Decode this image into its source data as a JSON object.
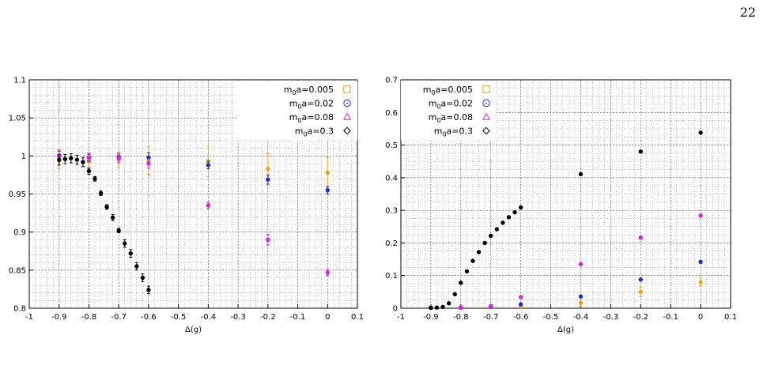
{
  "page_number": "22",
  "chart_data": [
    {
      "type": "scatter",
      "title": "",
      "xlabel": "Δ(g)",
      "ylabel": "",
      "xlim": [
        -1,
        0.1
      ],
      "ylim": [
        0.8,
        1.1
      ],
      "xticks": [
        -1,
        -0.9,
        -0.8,
        -0.7,
        -0.6,
        -0.5,
        -0.4,
        -0.3,
        -0.2,
        -0.1,
        0,
        0.1
      ],
      "xtick_labels": [
        "-1",
        "-0.9",
        "-0.8",
        "-0.7",
        "-0.6",
        "-0.5",
        "-0.4",
        "-0.3",
        "-0.2",
        "-0.1",
        "0",
        "0.1"
      ],
      "yticks": [
        0.8,
        0.85,
        0.9,
        0.95,
        1.0,
        1.05,
        1.1
      ],
      "ytick_labels": [
        "0.8",
        "0.85",
        "0.9",
        "0.95",
        "1",
        "1.05",
        "1.1"
      ],
      "grid": true,
      "legend_position": "top-right",
      "series": [
        {
          "name": "m0a=0.005",
          "legend_main": "m",
          "legend_sub": "0",
          "legend_rest": "a=0.005",
          "color": "#f0a020",
          "marker": "square",
          "points": [
            [
              -0.9,
              0.995,
              0.012
            ],
            [
              -0.8,
              0.993,
              0.01
            ],
            [
              -0.7,
              0.995,
              0.01
            ],
            [
              -0.6,
              0.994,
              0.018
            ],
            [
              -0.4,
              0.993,
              0.02
            ],
            [
              -0.2,
              0.983,
              0.02
            ],
            [
              0,
              0.978,
              0.02
            ]
          ]
        },
        {
          "name": "m0a=0.02",
          "legend_main": "m",
          "legend_sub": "0",
          "legend_rest": "a=0.02",
          "color": "#1a2fd0",
          "marker": "circle",
          "points": [
            [
              -0.9,
              1.0,
              0.006
            ],
            [
              -0.8,
              0.998,
              0.004
            ],
            [
              -0.7,
              0.999,
              0.004
            ],
            [
              -0.6,
              0.998,
              0.006
            ],
            [
              -0.4,
              0.988,
              0.005
            ],
            [
              -0.2,
              0.969,
              0.006
            ],
            [
              0,
              0.955,
              0.005
            ]
          ]
        },
        {
          "name": "m0a=0.08",
          "legend_main": "m",
          "legend_sub": "0",
          "legend_rest": "a=0.08",
          "color": "#e020e0",
          "marker": "triangle",
          "points": [
            [
              -0.9,
              1.0,
              0.008
            ],
            [
              -0.8,
              0.998,
              0.006
            ],
            [
              -0.7,
              0.997,
              0.006
            ],
            [
              -0.6,
              0.99,
              0.006
            ],
            [
              -0.4,
              0.935,
              0.004
            ],
            [
              -0.2,
              0.89,
              0.007
            ],
            [
              0,
              0.847,
              0.004
            ]
          ]
        },
        {
          "name": "m0a=0.3",
          "legend_main": "m",
          "legend_sub": "0",
          "legend_rest": "a=0.3",
          "color": "#000000",
          "marker": "diamond",
          "points": [
            [
              -0.9,
              0.995,
              0.007
            ],
            [
              -0.88,
              0.996,
              0.006
            ],
            [
              -0.86,
              0.997,
              0.006
            ],
            [
              -0.84,
              0.995,
              0.006
            ],
            [
              -0.82,
              0.992,
              0.006
            ],
            [
              -0.8,
              0.98,
              0.004
            ],
            [
              -0.78,
              0.97,
              0.003
            ],
            [
              -0.76,
              0.951,
              0.003
            ],
            [
              -0.74,
              0.933,
              0.003
            ],
            [
              -0.72,
              0.919,
              0.004
            ],
            [
              -0.7,
              0.902,
              0.003
            ],
            [
              -0.68,
              0.885,
              0.005
            ],
            [
              -0.66,
              0.872,
              0.005
            ],
            [
              -0.64,
              0.855,
              0.005
            ],
            [
              -0.62,
              0.84,
              0.005
            ],
            [
              -0.6,
              0.824,
              0.005
            ]
          ]
        }
      ]
    },
    {
      "type": "scatter",
      "title": "",
      "xlabel": "Δ(g)",
      "ylabel": "",
      "xlim": [
        -1,
        0.1
      ],
      "ylim": [
        0,
        0.7
      ],
      "xticks": [
        -1,
        -0.9,
        -0.8,
        -0.7,
        -0.6,
        -0.5,
        -0.4,
        -0.3,
        -0.2,
        -0.1,
        0,
        0.1
      ],
      "xtick_labels": [
        "-1",
        "-0.9",
        "-0.8",
        "-0.7",
        "-0.6",
        "-0.5",
        "-0.4",
        "-0.3",
        "-0.2",
        "-0.1",
        "0",
        "0.1"
      ],
      "yticks": [
        0,
        0.1,
        0.2,
        0.3,
        0.4,
        0.5,
        0.6,
        0.7
      ],
      "ytick_labels": [
        "0",
        "0.1",
        "0.2",
        "0.3",
        "0.4",
        "0.5",
        "0.6",
        "0.7"
      ],
      "grid": true,
      "legend_position": "top-left",
      "series": [
        {
          "name": "m0a=0.005",
          "legend_main": "m",
          "legend_sub": "0",
          "legend_rest": "a=0.005",
          "color": "#f0a020",
          "marker": "square",
          "points": [
            [
              -0.9,
              0.002,
              0.003
            ],
            [
              -0.8,
              0.002,
              0.003
            ],
            [
              -0.7,
              0.003,
              0.004
            ],
            [
              -0.6,
              0.006,
              0.005
            ],
            [
              -0.4,
              0.016,
              0.01
            ],
            [
              -0.2,
              0.05,
              0.015
            ],
            [
              0,
              0.08,
              0.012
            ]
          ]
        },
        {
          "name": "m0a=0.02",
          "legend_main": "m",
          "legend_sub": "0",
          "legend_rest": "a=0.02",
          "color": "#1a2fd0",
          "marker": "circle",
          "points": [
            [
              -0.9,
              0.002,
              0.002
            ],
            [
              -0.8,
              0.002,
              0.002
            ],
            [
              -0.7,
              0.005,
              0.002
            ],
            [
              -0.6,
              0.012,
              0.003
            ],
            [
              -0.4,
              0.036,
              0.004
            ],
            [
              -0.2,
              0.088,
              0.004
            ],
            [
              0,
              0.142,
              0.004
            ]
          ]
        },
        {
          "name": "m0a=0.08",
          "legend_main": "m",
          "legend_sub": "0",
          "legend_rest": "a=0.08",
          "color": "#e020e0",
          "marker": "triangle",
          "points": [
            [
              -0.9,
              0.002,
              0.002
            ],
            [
              -0.8,
              0.003,
              0.002
            ],
            [
              -0.7,
              0.007,
              0.002
            ],
            [
              -0.6,
              0.034,
              0.002
            ],
            [
              -0.4,
              0.135,
              0.003
            ],
            [
              -0.2,
              0.216,
              0.004
            ],
            [
              0,
              0.284,
              0.004
            ]
          ]
        },
        {
          "name": "m0a=0.3",
          "legend_main": "m",
          "legend_sub": "0",
          "legend_rest": "a=0.3",
          "color": "#000000",
          "marker": "diamond",
          "points": [
            [
              -0.9,
              0.001,
              0.001
            ],
            [
              -0.88,
              0.002,
              0.001
            ],
            [
              -0.86,
              0.004,
              0.001
            ],
            [
              -0.84,
              0.015,
              0.002
            ],
            [
              -0.82,
              0.043,
              0.002
            ],
            [
              -0.8,
              0.078,
              0.002
            ],
            [
              -0.78,
              0.113,
              0.002
            ],
            [
              -0.76,
              0.145,
              0.002
            ],
            [
              -0.74,
              0.172,
              0.002
            ],
            [
              -0.72,
              0.2,
              0.002
            ],
            [
              -0.7,
              0.222,
              0.002
            ],
            [
              -0.68,
              0.242,
              0.002
            ],
            [
              -0.66,
              0.262,
              0.002
            ],
            [
              -0.64,
              0.279,
              0.002
            ],
            [
              -0.62,
              0.294,
              0.002
            ],
            [
              -0.6,
              0.309,
              0.002
            ],
            [
              -0.4,
              0.411,
              0.003
            ],
            [
              -0.2,
              0.48,
              0.003
            ],
            [
              0,
              0.538,
              0.003
            ]
          ]
        }
      ]
    }
  ]
}
